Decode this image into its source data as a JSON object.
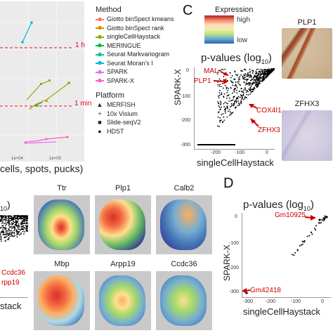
{
  "panelA": {
    "hline_labels": [
      "1 h",
      "1 min"
    ],
    "x_ticks": [
      "1e+04",
      "1e+05"
    ],
    "x_axis_fragment": "cells, spots, pucks)"
  },
  "legend": {
    "method_title": "Method",
    "methods": [
      {
        "name": "Giotto binSpect kmeans",
        "color": "#f8766d"
      },
      {
        "name": "Giotto binSpect rank",
        "color": "#d39200"
      },
      {
        "name": "singleCellHaystack",
        "color": "#93aa00"
      },
      {
        "name": "MERINGUE",
        "color": "#00ba38"
      },
      {
        "name": "Seurat Markvariogram",
        "color": "#00c19f"
      },
      {
        "name": "Seurat Moran's I",
        "color": "#00b9e3"
      },
      {
        "name": "SPARK",
        "color": "#db72fb"
      },
      {
        "name": "SPARK-X",
        "color": "#ff61c3"
      }
    ],
    "platform_title": "Platform",
    "platforms": [
      {
        "name": "MERFISH",
        "symbol": "▲"
      },
      {
        "name": "10x Visium",
        "symbol": "+"
      },
      {
        "name": "Slide-seqV2",
        "symbol": "■"
      },
      {
        "name": "HDST",
        "symbol": "●"
      }
    ]
  },
  "panelC": {
    "letter": "C",
    "expression_title": "Expression",
    "expr_high": "high",
    "expr_low": "low",
    "plot_title": "p-values (log",
    "plot_title_sub": "10",
    "plot_title_end": ")",
    "ylabel": "SPARK-X",
    "xlabel": "singleCellHaystack",
    "y_ticks": [
      "0",
      "-100",
      "-200",
      "-300"
    ],
    "x_ticks": [
      "-200",
      "-100",
      "0"
    ],
    "gene_labels": [
      "MAL",
      "PLP1",
      "COX4I1",
      "ZFHX3"
    ],
    "thumb_titles": [
      "PLP1",
      "ZFHX3"
    ]
  },
  "panelB": {
    "title_fragment": "10",
    "labels": [
      "Ccdc36",
      "rpp19"
    ],
    "xlabel_fragment": "stack",
    "maps": [
      "Ttr",
      "Plp1",
      "Calb2",
      "Mbp",
      "Arpp19",
      "Ccdc36"
    ]
  },
  "panelD": {
    "letter": "D",
    "plot_title": "p-values (log",
    "plot_title_sub": "10",
    "plot_title_end": ")",
    "ylabel": "SPARK-X",
    "xlabel": "singleCellHaystack",
    "y_ticks": [
      "0",
      "-100",
      "-200",
      "-300"
    ],
    "x_ticks": [
      "-300",
      "-200",
      "-100",
      "0"
    ],
    "gene_labels": [
      "Gm10925",
      "Gm42418"
    ]
  }
}
